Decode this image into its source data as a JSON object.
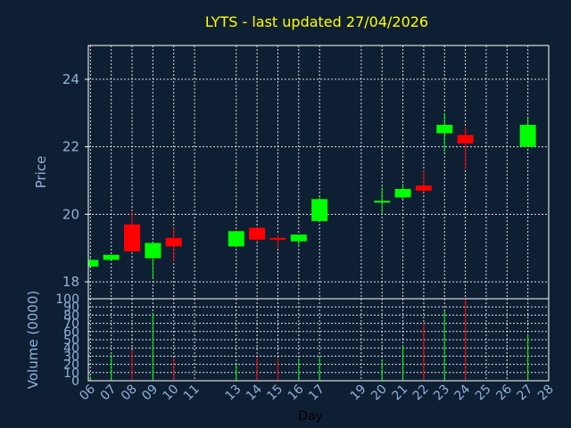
{
  "chart_data": [
    {
      "type": "candlestick",
      "title": "LYTS - last updated 27/04/2026",
      "ylabel": "Price",
      "ylim": [
        17.5,
        25
      ],
      "yticks": [
        18,
        20,
        22,
        24
      ],
      "grid": true,
      "up_color": "#00ff00",
      "down_color": "#ff0000",
      "candles": [
        {
          "day": 6.0,
          "open": 18.45,
          "high": 18.7,
          "low": 18.45,
          "close": 18.65
        },
        {
          "day": 7.0,
          "open": 18.65,
          "high": 18.8,
          "low": 18.65,
          "close": 18.8
        },
        {
          "day": 8.0,
          "open": 19.7,
          "high": 20.1,
          "low": 18.9,
          "close": 18.9
        },
        {
          "day": 9.0,
          "open": 18.7,
          "high": 19.2,
          "low": 18.1,
          "close": 19.15
        },
        {
          "day": 10.0,
          "open": 19.3,
          "high": 19.6,
          "low": 18.6,
          "close": 19.05
        },
        {
          "day": 13.0,
          "open": 19.05,
          "high": 19.5,
          "low": 19.05,
          "close": 19.5
        },
        {
          "day": 14.0,
          "open": 19.6,
          "high": 19.6,
          "low": 19.2,
          "close": 19.25
        },
        {
          "day": 15.0,
          "open": 19.3,
          "high": 19.4,
          "low": 19.0,
          "close": 19.25
        },
        {
          "day": 16.0,
          "open": 19.2,
          "high": 19.4,
          "low": 19.05,
          "close": 19.4
        },
        {
          "day": 17.0,
          "open": 19.8,
          "high": 20.5,
          "low": 19.8,
          "close": 20.45
        },
        {
          "day": 20.0,
          "open": 20.35,
          "high": 20.8,
          "low": 20.0,
          "close": 20.4
        },
        {
          "day": 21.0,
          "open": 20.5,
          "high": 20.9,
          "low": 20.45,
          "close": 20.75
        },
        {
          "day": 22.0,
          "open": 20.85,
          "high": 21.3,
          "low": 20.65,
          "close": 20.7
        },
        {
          "day": 23.0,
          "open": 22.4,
          "high": 23.0,
          "low": 21.85,
          "close": 22.65
        },
        {
          "day": 24.0,
          "open": 22.35,
          "high": 22.6,
          "low": 21.35,
          "close": 22.1
        },
        {
          "day": 27.0,
          "open": 22.0,
          "high": 22.85,
          "low": 22.0,
          "close": 22.65
        }
      ]
    },
    {
      "type": "bar",
      "ylabel": "Volume (0000)",
      "xlabel": "Day",
      "ylim": [
        0,
        100
      ],
      "yticks": [
        0,
        10,
        20,
        30,
        40,
        50,
        60,
        70,
        80,
        90,
        100
      ],
      "grid": true,
      "x_tick_labels": [
        "06",
        "07",
        "08",
        "09",
        "10",
        "11",
        "13",
        "14",
        "15",
        "16",
        "17",
        "19",
        "20",
        "21",
        "22",
        "23",
        "24",
        "25",
        "26",
        "27",
        "28"
      ],
      "bars": [
        {
          "day": 6.0,
          "value": 5,
          "dir": "up"
        },
        {
          "day": 7.0,
          "value": 32,
          "dir": "up"
        },
        {
          "day": 8.0,
          "value": 37,
          "dir": "down"
        },
        {
          "day": 9.0,
          "value": 83,
          "dir": "up"
        },
        {
          "day": 10.0,
          "value": 27,
          "dir": "down"
        },
        {
          "day": 13.0,
          "value": 20,
          "dir": "up"
        },
        {
          "day": 14.0,
          "value": 29,
          "dir": "down"
        },
        {
          "day": 15.0,
          "value": 26,
          "dir": "down"
        },
        {
          "day": 16.0,
          "value": 27,
          "dir": "up"
        },
        {
          "day": 17.0,
          "value": 30,
          "dir": "up"
        },
        {
          "day": 20.0,
          "value": 25,
          "dir": "up"
        },
        {
          "day": 21.0,
          "value": 43,
          "dir": "up"
        },
        {
          "day": 22.0,
          "value": 72,
          "dir": "down"
        },
        {
          "day": 23.0,
          "value": 85,
          "dir": "up"
        },
        {
          "day": 24.0,
          "value": 100,
          "dir": "down"
        },
        {
          "day": 27.0,
          "value": 57,
          "dir": "up"
        }
      ]
    }
  ]
}
